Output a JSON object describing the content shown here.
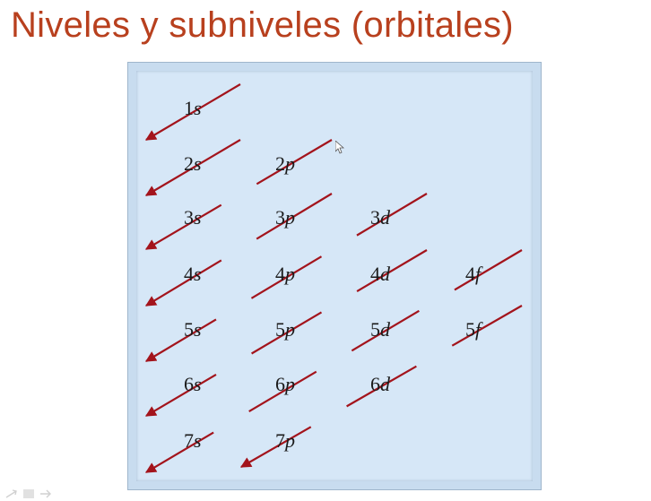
{
  "title": "Niveles y subniveles (orbitales)",
  "colors": {
    "title": "#b8401e",
    "arrow": "#a3141c",
    "panel": "#d6e7f7"
  },
  "diagram": {
    "columns": [
      "s",
      "p",
      "d",
      "f"
    ],
    "rows": [
      {
        "level": 1,
        "orbitals": [
          {
            "n": "1",
            "l": "s"
          }
        ]
      },
      {
        "level": 2,
        "orbitals": [
          {
            "n": "2",
            "l": "s"
          },
          {
            "n": "2",
            "l": "p"
          }
        ]
      },
      {
        "level": 3,
        "orbitals": [
          {
            "n": "3",
            "l": "s"
          },
          {
            "n": "3",
            "l": "p"
          },
          {
            "n": "3",
            "l": "d"
          }
        ]
      },
      {
        "level": 4,
        "orbitals": [
          {
            "n": "4",
            "l": "s"
          },
          {
            "n": "4",
            "l": "p"
          },
          {
            "n": "4",
            "l": "d"
          },
          {
            "n": "4",
            "l": "f"
          }
        ]
      },
      {
        "level": 5,
        "orbitals": [
          {
            "n": "5",
            "l": "s"
          },
          {
            "n": "5",
            "l": "p"
          },
          {
            "n": "5",
            "l": "d"
          },
          {
            "n": "5",
            "l": "f"
          }
        ]
      },
      {
        "level": 6,
        "orbitals": [
          {
            "n": "6",
            "l": "s"
          },
          {
            "n": "6",
            "l": "p"
          },
          {
            "n": "6",
            "l": "d"
          }
        ]
      },
      {
        "level": 7,
        "orbitals": [
          {
            "n": "7",
            "l": "s"
          },
          {
            "n": "7",
            "l": "p"
          }
        ]
      }
    ],
    "filling_order": [
      "1s",
      "2s",
      "2p",
      "3s",
      "3p",
      "4s",
      "3d",
      "4p",
      "5s",
      "4d",
      "5p",
      "6s",
      "4f",
      "5d",
      "6p",
      "7s",
      "5f",
      "6d",
      "7p"
    ]
  },
  "icons": [
    "arrow-icon",
    "page-icon",
    "arrow-icon"
  ]
}
